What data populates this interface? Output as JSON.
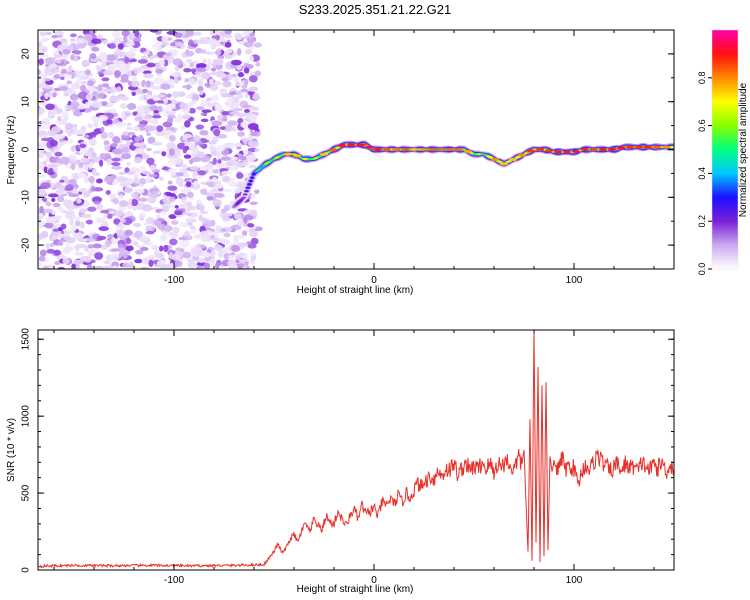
{
  "title": "S233.2025.351.21.22.G21",
  "chart_data": [
    {
      "type": "heatmap",
      "name": "spectrogram",
      "xlabel": "Height of straight line (km)",
      "ylabel": "Frequency (Hz)",
      "xlim": [
        -168,
        150
      ],
      "ylim": [
        -25,
        25
      ],
      "xticks": [
        -100,
        0,
        100
      ],
      "yticks": [
        -20,
        -10,
        0,
        10,
        20
      ],
      "colorbar": {
        "label": "Normalized spectral amplitude",
        "range": [
          0,
          1
        ],
        "ticks": [
          0.0,
          0.2,
          0.4,
          0.6,
          0.8
        ],
        "tick_labels": [
          "0.0",
          "0.2",
          "0.4",
          "0.6",
          "0.8"
        ],
        "colormap": [
          "#ffffff",
          "#cba9f0",
          "#7a1fd8",
          "#1a10ff",
          "#00c8ff",
          "#00ff80",
          "#88ff00",
          "#ffff00",
          "#ff8800",
          "#ff1010",
          "#ff00aa"
        ]
      },
      "noise_region": {
        "x": [
          -168,
          -58
        ],
        "y": [
          -25,
          25
        ],
        "density": "high",
        "amplitude_range": [
          0.0,
          0.2
        ]
      },
      "ridge_x": [
        -70,
        -65,
        -62,
        -60,
        -57,
        -54,
        -50,
        -45,
        -40,
        -35,
        -30,
        -25,
        -20,
        -15,
        -10,
        -5,
        0,
        5,
        10,
        15,
        20,
        25,
        30,
        35,
        40,
        45,
        50,
        55,
        60,
        65,
        70,
        75,
        80,
        85,
        90,
        95,
        100,
        105,
        110,
        115,
        120,
        125,
        130,
        135,
        140,
        145,
        150
      ],
      "ridge_y": [
        -12,
        -10,
        -7,
        -5,
        -4,
        -3,
        -2,
        -1,
        -1,
        -2,
        -2,
        -1,
        0,
        1,
        1,
        1,
        0,
        0,
        0,
        0,
        0,
        0,
        0,
        0,
        0,
        0,
        -1,
        -1,
        -2,
        -3,
        -2,
        -1,
        0,
        0,
        -0.5,
        -0.5,
        -0.5,
        0,
        0,
        0,
        0,
        0.5,
        0.5,
        0.5,
        0.5,
        0.5,
        0.5
      ],
      "ridge_amplitude": [
        0.2,
        0.25,
        0.3,
        0.4,
        0.5,
        0.6,
        0.65,
        0.7,
        0.7,
        0.7,
        0.65,
        0.7,
        0.8,
        0.9,
        0.85,
        0.9,
        0.9,
        0.8,
        0.75,
        0.8,
        0.7,
        0.75,
        0.8,
        0.75,
        0.8,
        0.75,
        0.7,
        0.65,
        0.75,
        0.7,
        0.7,
        0.75,
        0.85,
        0.8,
        0.85,
        0.9,
        0.9,
        0.85,
        0.8,
        0.85,
        0.9,
        0.85,
        0.8,
        0.85,
        0.8,
        0.75,
        0.7
      ]
    },
    {
      "type": "line",
      "name": "snr",
      "xlabel": "Height of straight line (km)",
      "ylabel": "SNR (10 * v/v)",
      "xlim": [
        -168,
        150
      ],
      "ylim": [
        0,
        1560
      ],
      "xticks": [
        -100,
        0,
        100
      ],
      "yticks": [
        0,
        500,
        1000,
        1500
      ],
      "color": "#e8302a",
      "series": [
        {
          "name": "SNR",
          "x": [
            -168,
            -150,
            -130,
            -110,
            -90,
            -70,
            -55,
            -50,
            -48,
            -46,
            -44,
            -42,
            -40,
            -38,
            -36,
            -34,
            -32,
            -30,
            -28,
            -26,
            -24,
            -22,
            -20,
            -18,
            -16,
            -14,
            -12,
            -10,
            -8,
            -6,
            -4,
            -2,
            0,
            2,
            4,
            6,
            8,
            10,
            12,
            14,
            16,
            18,
            20,
            22,
            24,
            26,
            28,
            30,
            32,
            34,
            36,
            38,
            40,
            42,
            44,
            46,
            48,
            50,
            52,
            54,
            56,
            58,
            60,
            62,
            64,
            66,
            68,
            70,
            72,
            74,
            75,
            76,
            77,
            78,
            79,
            80,
            81,
            82,
            83,
            84,
            85,
            86,
            87,
            88,
            89,
            90,
            92,
            94,
            96,
            98,
            100,
            102,
            104,
            106,
            108,
            110,
            112,
            114,
            116,
            118,
            120,
            122,
            124,
            126,
            128,
            130,
            132,
            134,
            136,
            138,
            140,
            142,
            144,
            146,
            148,
            150
          ],
          "values": [
            25,
            30,
            28,
            30,
            27,
            30,
            35,
            120,
            170,
            110,
            140,
            200,
            230,
            180,
            260,
            300,
            240,
            330,
            290,
            260,
            350,
            310,
            300,
            380,
            330,
            290,
            350,
            400,
            330,
            420,
            360,
            380,
            410,
            350,
            440,
            420,
            460,
            430,
            480,
            440,
            500,
            470,
            520,
            560,
            540,
            580,
            610,
            590,
            640,
            610,
            660,
            650,
            690,
            620,
            660,
            700,
            640,
            680,
            650,
            700,
            660,
            690,
            630,
            700,
            670,
            720,
            680,
            650,
            730,
            690,
            780,
            440,
            120,
            980,
            60,
            1560,
            180,
            1320,
            50,
            1200,
            90,
            1220,
            130,
            740,
            640,
            700,
            650,
            720,
            660,
            680,
            660,
            560,
            640,
            690,
            650,
            710,
            750,
            700,
            680,
            640,
            670,
            690,
            640,
            700,
            660,
            680,
            640,
            700,
            670,
            650,
            690,
            660,
            700,
            640,
            680,
            660
          ]
        }
      ]
    }
  ]
}
